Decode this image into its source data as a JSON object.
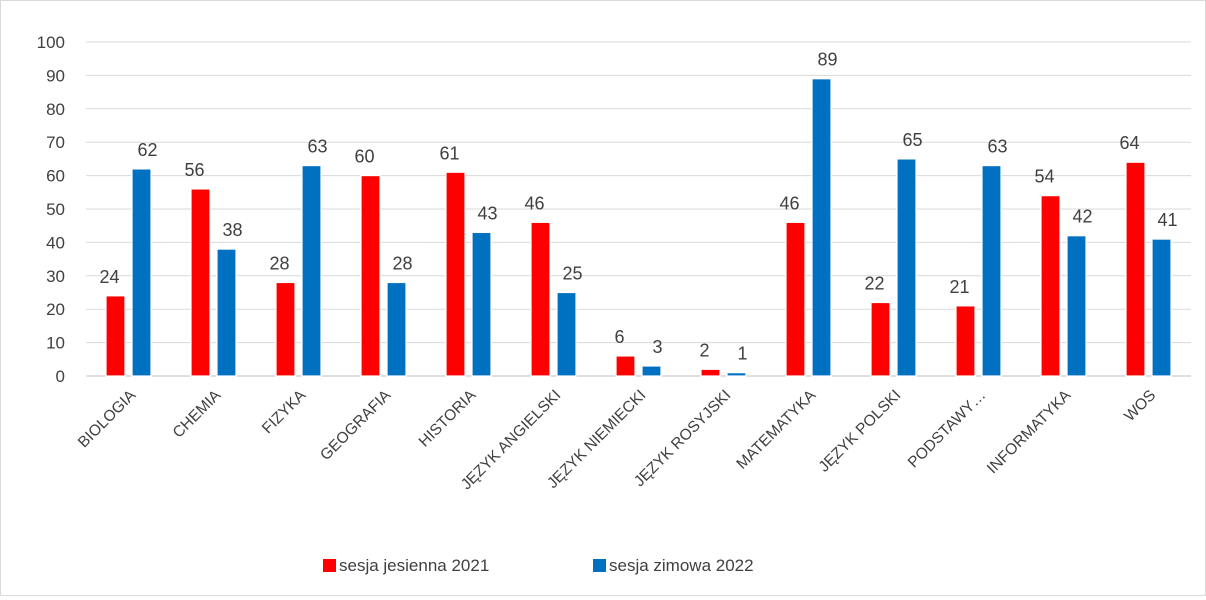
{
  "chart_data": {
    "type": "bar",
    "categories": [
      "BIOLOGIA",
      "CHEMIA",
      "FIZYKA",
      "GEOGRAFIA",
      "HISTORIA",
      "JĘZYK ANGIELSKI",
      "JĘZYK NIEMIECKI",
      "JĘZYK ROSYJSKI",
      "MATEMATYKA",
      "JĘZYK POLSKI",
      "PODSTAWY…",
      "INFORMATYKA",
      "WOS"
    ],
    "series": [
      {
        "name": "sesja jesienna 2021",
        "color": "#ff0000",
        "values": [
          24,
          56,
          28,
          60,
          61,
          46,
          6,
          2,
          46,
          22,
          21,
          54,
          64
        ]
      },
      {
        "name": "sesja zimowa 2022",
        "color": "#0070c0",
        "values": [
          62,
          38,
          63,
          28,
          43,
          25,
          3,
          1,
          89,
          65,
          63,
          42,
          41
        ]
      }
    ],
    "ylim": [
      0,
      100
    ],
    "yticks": [
      "0",
      "10",
      "20",
      "30",
      "40",
      "50",
      "60",
      "70",
      "80",
      "90",
      "100"
    ],
    "grid": true,
    "legend_position": "bottom",
    "data_labels": true
  }
}
